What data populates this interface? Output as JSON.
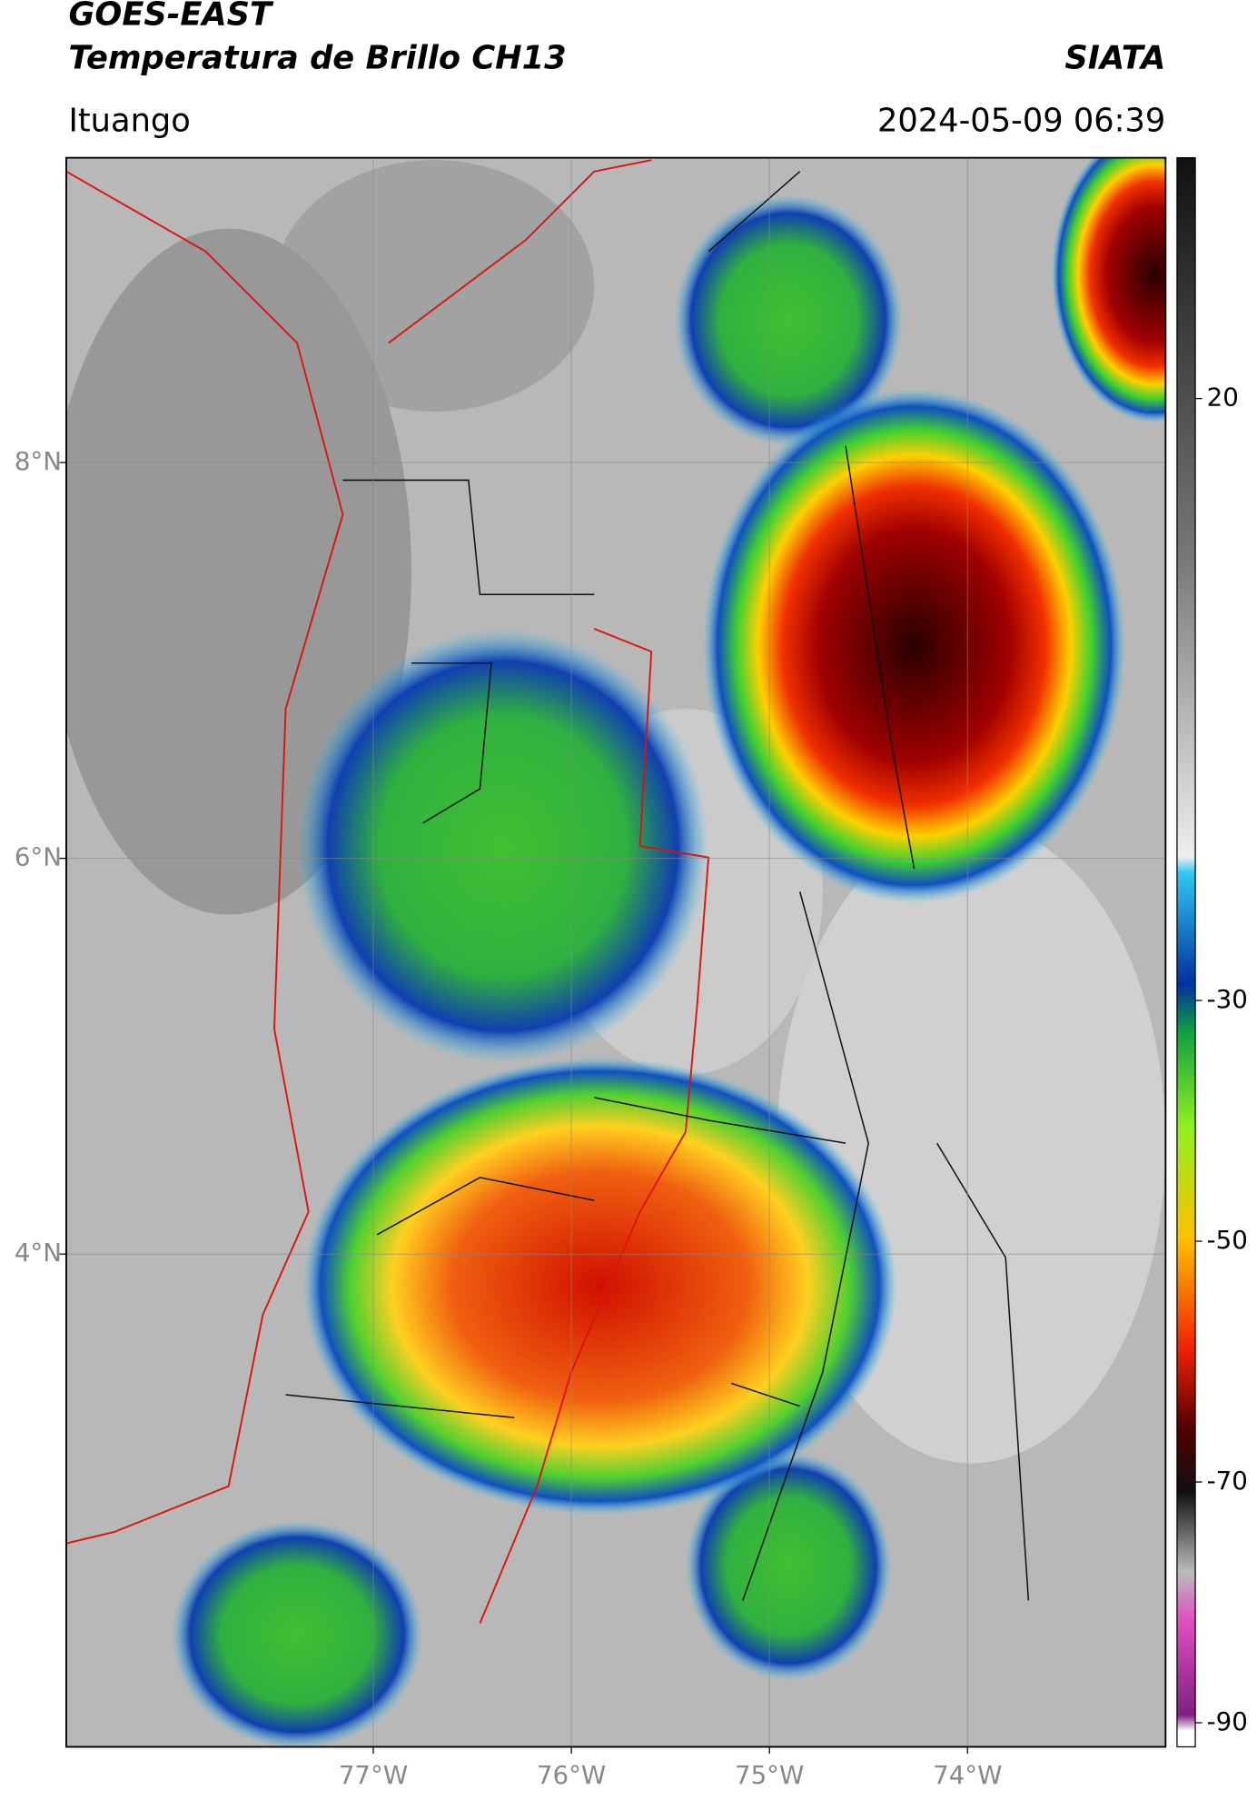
{
  "map": {
    "satellite": "GOES-EAST",
    "product": "Temperatura de Brillo CH13",
    "source": "SIATA",
    "region": "Ituango",
    "datetime": "2024-05-09 06:39",
    "xlim": [
      -78.55,
      -73.0
    ],
    "xticks": [
      {
        "value": -77,
        "label": "77°W"
      },
      {
        "value": -76,
        "label": "76°W"
      },
      {
        "value": -75,
        "label": "75°W"
      },
      {
        "value": -74,
        "label": "74°W"
      }
    ],
    "ylim": [
      1.51,
      9.54
    ],
    "yticks": [
      {
        "value": 8,
        "label": "8°N"
      },
      {
        "value": 6,
        "label": "6°N"
      },
      {
        "value": 4,
        "label": "4°N"
      }
    ],
    "grid": true,
    "colorbar": {
      "lim": [
        -92,
        40
      ],
      "ticks": [
        20,
        -30,
        -50,
        -70,
        -90
      ]
    }
  }
}
